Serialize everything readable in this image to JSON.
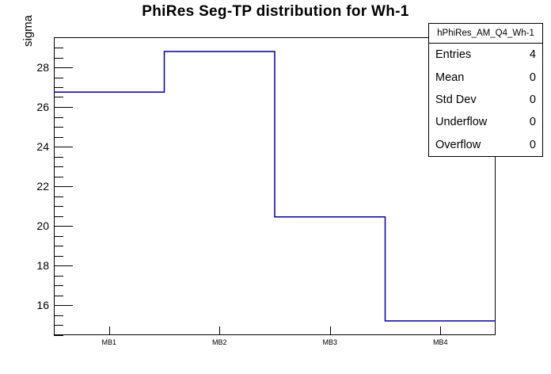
{
  "chart_data": {
    "type": "step-histogram",
    "title": "PhiRes Seg-TP distribution for Wh-1",
    "xlabel": "",
    "ylabel": "sigma",
    "categories": [
      "MB1",
      "MB2",
      "MB3",
      "MB4"
    ],
    "values": [
      26.75,
      28.8,
      20.45,
      15.2
    ],
    "ylim": [
      14.48,
      29.52
    ],
    "y_major_ticks": [
      16,
      18,
      20,
      22,
      24,
      26,
      28
    ],
    "y_minor_step": 0.5,
    "grid": "off",
    "line_color": "#000099",
    "frame_color": "#000000",
    "background_color": "#ffffff",
    "stats_box": {
      "header": "hPhiRes_AM_Q4_Wh-1",
      "rows": [
        {
          "label": "Entries",
          "value": "4"
        },
        {
          "label": "Mean",
          "value": "0"
        },
        {
          "label": "Std Dev",
          "value": "0"
        },
        {
          "label": "Underflow",
          "value": "0"
        },
        {
          "label": "Overflow",
          "value": "0"
        }
      ]
    }
  }
}
